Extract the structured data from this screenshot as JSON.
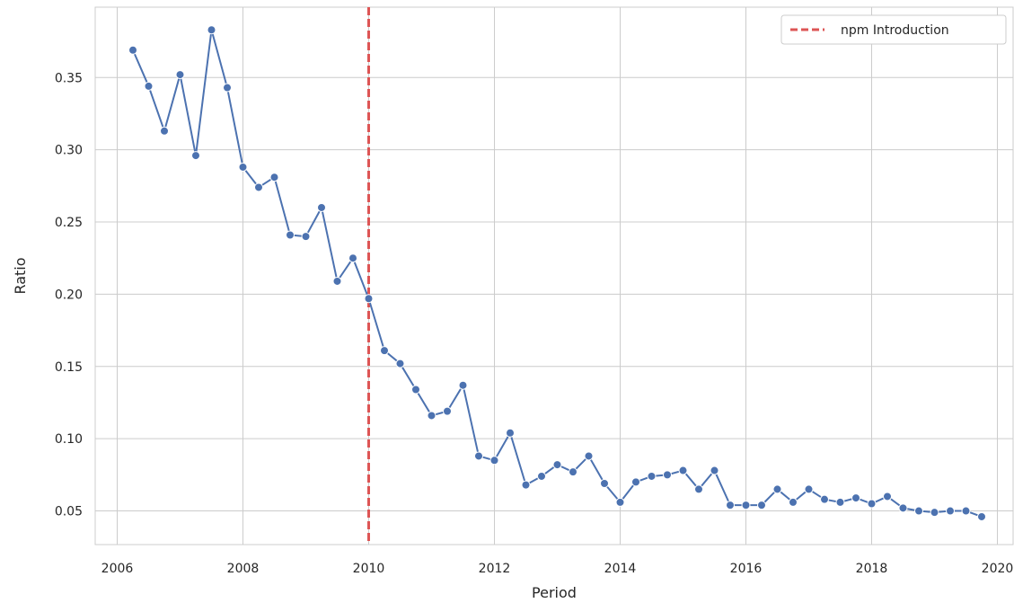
{
  "chart_data": {
    "type": "line",
    "xlabel": "Period",
    "ylabel": "Ratio",
    "xlim": [
      2005.65,
      2020.25
    ],
    "ylim": [
      0.0267,
      0.3987
    ],
    "x_ticks": [
      2006,
      2008,
      2010,
      2012,
      2014,
      2016,
      2018,
      2020
    ],
    "x_tick_labels": [
      "2006",
      "2008",
      "2010",
      "2012",
      "2014",
      "2016",
      "2018",
      "2020"
    ],
    "y_ticks": [
      0.05,
      0.1,
      0.15,
      0.2,
      0.25,
      0.3,
      0.35
    ],
    "y_tick_labels": [
      "0.05",
      "0.10",
      "0.15",
      "0.20",
      "0.25",
      "0.30",
      "0.35"
    ],
    "grid": true,
    "legend_position": "top-right",
    "series": [
      {
        "color": "#4c72b0",
        "marker": "circle",
        "x": [
          2006.25,
          2006.5,
          2006.75,
          2007.0,
          2007.25,
          2007.5,
          2007.75,
          2008.0,
          2008.25,
          2008.5,
          2008.75,
          2009.0,
          2009.25,
          2009.5,
          2009.75,
          2010.0,
          2010.25,
          2010.5,
          2010.75,
          2011.0,
          2011.25,
          2011.5,
          2011.75,
          2012.0,
          2012.25,
          2012.5,
          2012.75,
          2013.0,
          2013.25,
          2013.5,
          2013.75,
          2014.0,
          2014.25,
          2014.5,
          2014.75,
          2015.0,
          2015.25,
          2015.5,
          2015.75,
          2016.0,
          2016.25,
          2016.5,
          2016.75,
          2017.0,
          2017.25,
          2017.5,
          2017.75,
          2018.0,
          2018.25,
          2018.5,
          2018.75,
          2019.0,
          2019.25,
          2019.5,
          2019.75
        ],
        "values": [
          0.369,
          0.344,
          0.313,
          0.352,
          0.296,
          0.383,
          0.343,
          0.288,
          0.274,
          0.281,
          0.241,
          0.24,
          0.26,
          0.209,
          0.225,
          0.197,
          0.161,
          0.152,
          0.134,
          0.116,
          0.119,
          0.137,
          0.088,
          0.085,
          0.104,
          0.068,
          0.074,
          0.082,
          0.077,
          0.088,
          0.069,
          0.056,
          0.07,
          0.074,
          0.075,
          0.078,
          0.065,
          0.078,
          0.054,
          0.054,
          0.054,
          0.065,
          0.056,
          0.065,
          0.058,
          0.056,
          0.059,
          0.055,
          0.06,
          0.052,
          0.05,
          0.049,
          0.05,
          0.05,
          0.046
        ]
      }
    ],
    "vlines": [
      {
        "label": "npm Introduction",
        "x": 2010.0,
        "color": "#dd5555",
        "style": "dashed"
      }
    ]
  }
}
